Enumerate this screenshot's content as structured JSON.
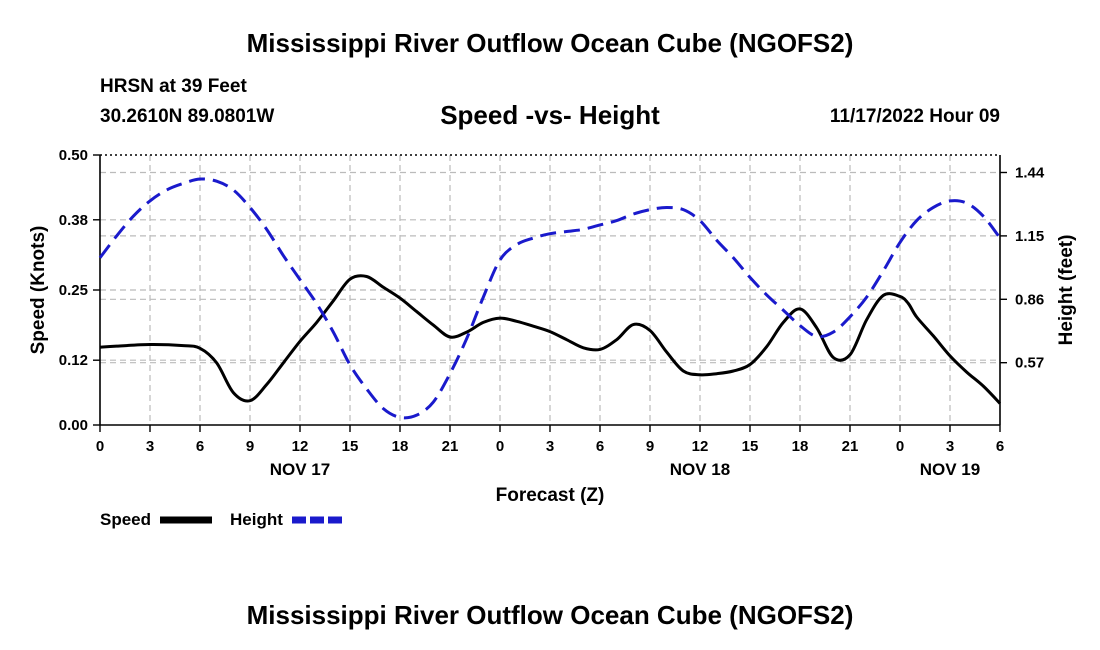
{
  "page": {
    "title": "Mississippi River Outflow Ocean Cube (NGOFS2)",
    "footer_title": "Mississippi River Outflow Ocean Cube (NGOFS2)",
    "station": "HRSN at 39 Feet",
    "coords": "30.2610N  89.0801W",
    "datetime": "11/17/2022 Hour 09"
  },
  "colors": {
    "speed": "#000000",
    "height": "#1a1acc",
    "grid": "#bbbbbb"
  },
  "chart_data": {
    "type": "line",
    "title": "Speed -vs- Height",
    "xlabel": "Forecast (Z)",
    "ylabel": "Speed (Knots)",
    "y2label": "Height (feet)",
    "xlim": [
      0,
      54
    ],
    "ylim": [
      0,
      0.5
    ],
    "y2lim": [
      0.285,
      1.52
    ],
    "x_ticks": [
      0,
      3,
      6,
      9,
      12,
      15,
      18,
      21,
      24,
      27,
      30,
      33,
      36,
      39,
      42,
      45,
      48,
      51,
      54
    ],
    "x_tick_labels": [
      "0",
      "3",
      "6",
      "9",
      "12",
      "15",
      "18",
      "21",
      "0",
      "3",
      "6",
      "9",
      "12",
      "15",
      "18",
      "21",
      "0",
      "3",
      "6"
    ],
    "day_labels": [
      {
        "x": 12,
        "label": "NOV 17"
      },
      {
        "x": 36,
        "label": "NOV 18"
      },
      {
        "x": 51,
        "label": "NOV 19"
      }
    ],
    "y_ticks": [
      0.0,
      0.12,
      0.25,
      0.38,
      0.5
    ],
    "y_tick_labels": [
      "0.00",
      "0.12",
      "0.25",
      "0.38",
      "0.50"
    ],
    "y2_ticks": [
      0.57,
      0.86,
      1.15,
      1.44
    ],
    "y2_tick_labels": [
      "0.57",
      "0.86",
      "1.15",
      "1.44"
    ],
    "grid": true,
    "legend": "bottom-left",
    "series": [
      {
        "name": "Speed",
        "axis": "left",
        "style": "solid",
        "x": [
          0,
          1,
          3,
          5,
          6,
          7,
          8,
          9,
          10,
          11,
          12,
          13,
          14,
          15,
          16,
          17,
          18,
          19,
          20,
          21,
          22,
          23,
          24,
          25,
          26,
          27,
          28,
          29,
          30,
          31,
          32,
          33,
          34,
          35,
          36,
          37,
          38,
          39,
          40,
          41,
          42,
          43,
          44,
          45,
          46,
          47,
          48,
          48.5,
          49,
          50,
          51,
          52,
          53,
          54
        ],
        "values": [
          0.144,
          0.146,
          0.149,
          0.147,
          0.142,
          0.115,
          0.06,
          0.045,
          0.075,
          0.115,
          0.155,
          0.19,
          0.23,
          0.27,
          0.275,
          0.255,
          0.235,
          0.21,
          0.185,
          0.163,
          0.172,
          0.19,
          0.198,
          0.192,
          0.183,
          0.173,
          0.158,
          0.143,
          0.14,
          0.158,
          0.186,
          0.175,
          0.135,
          0.1,
          0.093,
          0.095,
          0.1,
          0.112,
          0.145,
          0.19,
          0.215,
          0.18,
          0.125,
          0.13,
          0.195,
          0.24,
          0.238,
          0.225,
          0.2,
          0.165,
          0.128,
          0.098,
          0.072,
          0.04
        ]
      },
      {
        "name": "Height",
        "axis": "right",
        "style": "dashed",
        "x": [
          0,
          1,
          2,
          3,
          4,
          5,
          6,
          7,
          8,
          9,
          10,
          11,
          12,
          13,
          14,
          15,
          16,
          17,
          18,
          19,
          20,
          21,
          22,
          23,
          24,
          25,
          26,
          27,
          28,
          29,
          30,
          31,
          32,
          33,
          34,
          35,
          36,
          37,
          38,
          39,
          40,
          41,
          42,
          43,
          44,
          45,
          46,
          47,
          48,
          49,
          50,
          51,
          52,
          53,
          54
        ],
        "values": [
          1.05,
          1.15,
          1.24,
          1.31,
          1.36,
          1.39,
          1.41,
          1.4,
          1.36,
          1.28,
          1.18,
          1.06,
          0.95,
          0.84,
          0.71,
          0.56,
          0.45,
          0.36,
          0.32,
          0.33,
          0.39,
          0.52,
          0.68,
          0.87,
          1.04,
          1.11,
          1.14,
          1.16,
          1.17,
          1.18,
          1.2,
          1.22,
          1.25,
          1.27,
          1.28,
          1.27,
          1.22,
          1.13,
          1.05,
          0.96,
          0.88,
          0.81,
          0.74,
          0.69,
          0.71,
          0.78,
          0.87,
          0.99,
          1.12,
          1.22,
          1.28,
          1.31,
          1.3,
          1.24,
          1.14
        ]
      }
    ]
  }
}
